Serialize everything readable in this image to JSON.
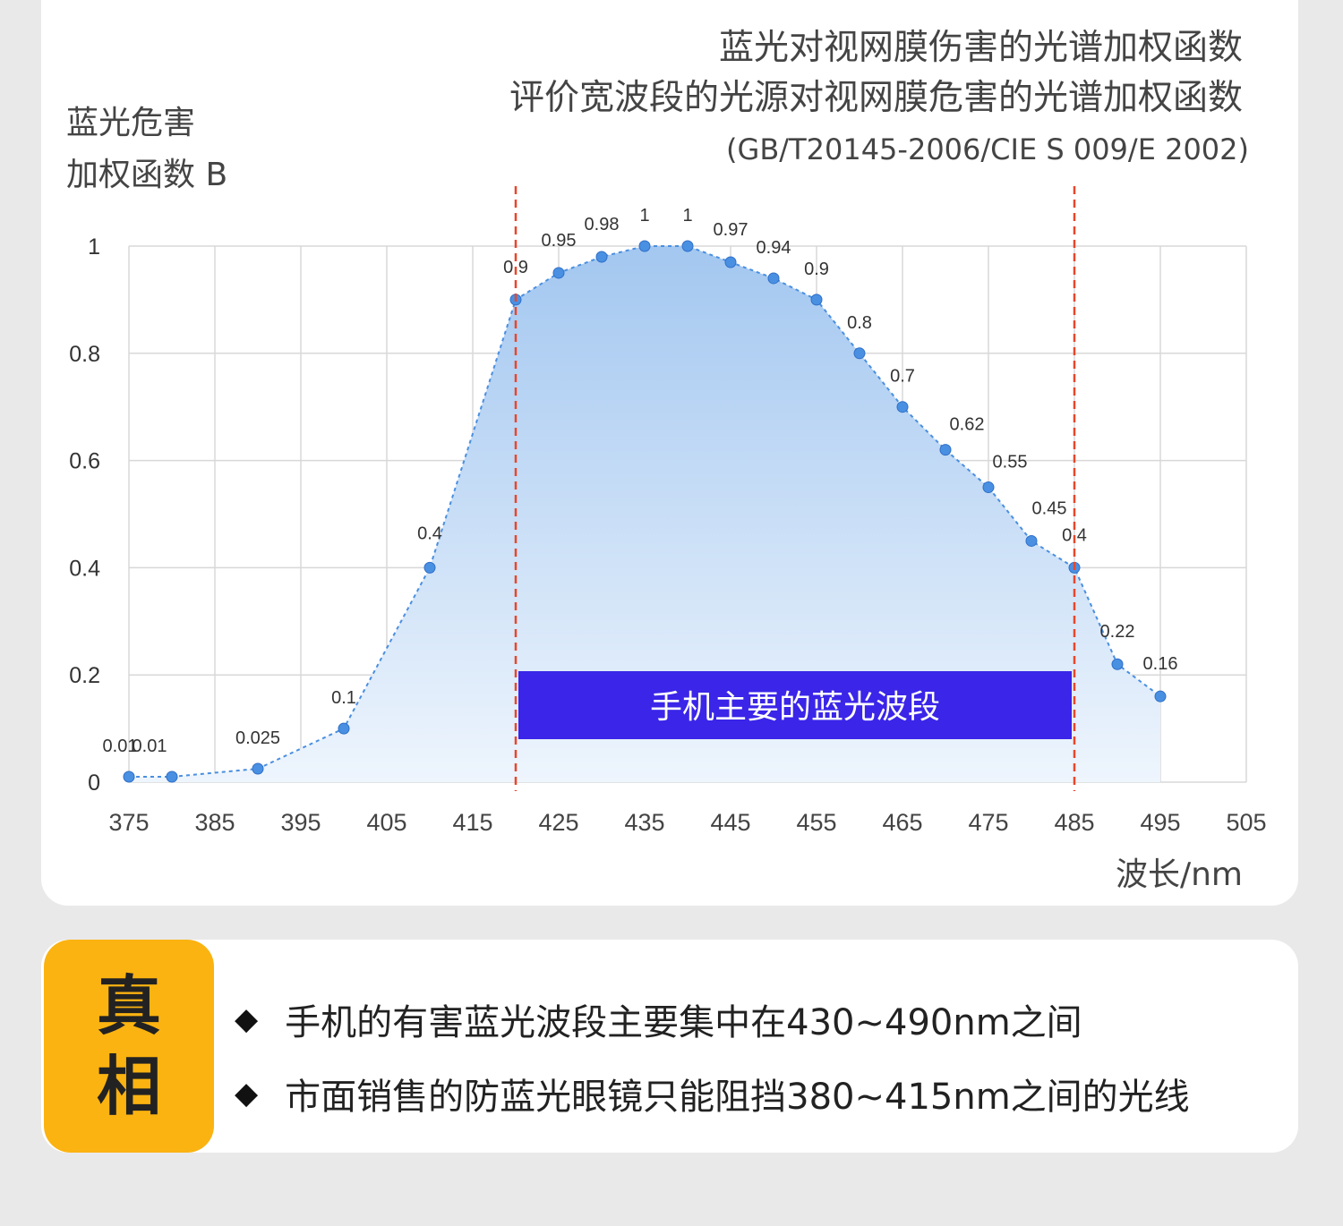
{
  "header": {
    "title_line1": "蓝光对视网膜伤害的光谱加权函数",
    "title_line2": "评价宽波段的光源对视网膜危害的光谱加权函数",
    "standard": "(GB/T20145-2006/CIE S 009/E 2002)",
    "y_label_line1": "蓝光危害",
    "y_label_line2": "加权函数 B",
    "x_unit": "波长/nm"
  },
  "chart_data": {
    "type": "area",
    "x": [
      375,
      380,
      390,
      400,
      410,
      420,
      425,
      430,
      435,
      440,
      445,
      450,
      455,
      460,
      465,
      470,
      475,
      480,
      485,
      490,
      495
    ],
    "y": [
      0.01,
      0.01,
      0.025,
      0.1,
      0.4,
      0.9,
      0.95,
      0.98,
      1,
      1,
      0.97,
      0.94,
      0.9,
      0.8,
      0.7,
      0.62,
      0.55,
      0.45,
      0.4,
      0.22,
      0.16
    ],
    "data_labels": [
      "0.01",
      "0.01",
      "0.025",
      "0.1",
      "0.4",
      "0.9",
      "0.95",
      "0.98",
      "1",
      "1",
      "0.97",
      "0.94",
      "0.9",
      "0.8",
      "0.7",
      "0.62",
      "0.55",
      "0.45",
      "0.4",
      "0.22",
      "0.16"
    ],
    "x_ticks": [
      "375",
      "385",
      "395",
      "405",
      "415",
      "425",
      "435",
      "445",
      "455",
      "465",
      "475",
      "485",
      "495",
      "505"
    ],
    "y_ticks": [
      "0",
      "0.2",
      "0.4",
      "0.6",
      "0.8",
      "1"
    ],
    "xlim": [
      375,
      505
    ],
    "ylim": [
      0,
      1
    ],
    "grid": true,
    "band": {
      "x_start": 420,
      "x_end": 485,
      "label": "手机主要的蓝光波段"
    },
    "colors": {
      "line": "#4a8fe0",
      "marker": "#4a90e2",
      "fill_top": "#a3c7f0",
      "fill_bottom": "#eef5fd",
      "band_line": "#e8462a",
      "band_box": "#3a25e8"
    }
  },
  "facts": {
    "badge_char1": "真",
    "badge_char2": "相",
    "bullet": "◆",
    "item1": "手机的有害蓝光波段主要集中在430~490nm之间",
    "item2": "市面销售的防蓝光眼镜只能阻挡380~415nm之间的光线"
  }
}
